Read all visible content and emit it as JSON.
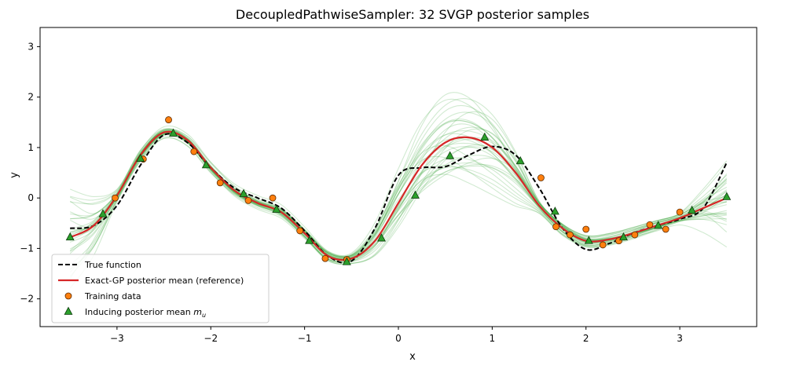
{
  "chart_data": {
    "type": "line",
    "title": "DecoupledPathwiseSampler: 32 SVGP posterior samples",
    "xlabel": "x",
    "ylabel": "y",
    "xlim": [
      -3.82,
      3.82
    ],
    "ylim": [
      -2.55,
      3.38
    ],
    "xticks": [
      -3,
      -2,
      -1,
      0,
      1,
      2,
      3
    ],
    "xtick_labels": [
      "−3",
      "−2",
      "−1",
      "0",
      "1",
      "2",
      "3"
    ],
    "yticks": [
      -2,
      -1,
      0,
      1,
      2,
      3
    ],
    "ytick_labels": [
      "−2",
      "−1",
      "0",
      "1",
      "2",
      "3"
    ],
    "grid": false,
    "legend_position": "lower-left",
    "sample_count": 32,
    "series": [
      {
        "name": "True function",
        "kind": "line",
        "style": "dashed",
        "color": "#000000",
        "x": [
          -3.5,
          -3.25,
          -3.0,
          -2.75,
          -2.5,
          -2.25,
          -2.0,
          -1.75,
          -1.5,
          -1.25,
          -1.0,
          -0.75,
          -0.5,
          -0.25,
          0.0,
          0.25,
          0.5,
          0.75,
          1.0,
          1.25,
          1.5,
          1.75,
          2.0,
          2.25,
          2.5,
          2.75,
          3.0,
          3.25,
          3.5
        ],
        "y": [
          -0.6,
          -0.55,
          -0.15,
          0.65,
          1.25,
          1.1,
          0.6,
          0.2,
          0.0,
          -0.2,
          -0.65,
          -1.15,
          -1.25,
          -0.6,
          0.45,
          0.6,
          0.62,
          0.85,
          1.02,
          0.85,
          0.2,
          -0.6,
          -1.02,
          -0.9,
          -0.7,
          -0.55,
          -0.42,
          -0.2,
          0.7
        ]
      },
      {
        "name": "Exact-GP posterior mean (reference)",
        "kind": "line",
        "style": "solid",
        "color": "#d62728",
        "x": [
          -3.5,
          -3.25,
          -3.0,
          -2.75,
          -2.5,
          -2.25,
          -2.0,
          -1.75,
          -1.5,
          -1.25,
          -1.0,
          -0.75,
          -0.5,
          -0.25,
          0.0,
          0.25,
          0.5,
          0.75,
          1.0,
          1.25,
          1.5,
          1.75,
          2.0,
          2.25,
          2.5,
          2.75,
          3.0,
          3.25,
          3.5
        ],
        "y": [
          -0.78,
          -0.55,
          0.05,
          0.85,
          1.3,
          1.15,
          0.6,
          0.15,
          -0.1,
          -0.28,
          -0.7,
          -1.15,
          -1.2,
          -0.85,
          -0.1,
          0.65,
          1.1,
          1.2,
          1.0,
          0.5,
          -0.15,
          -0.6,
          -0.85,
          -0.82,
          -0.7,
          -0.55,
          -0.4,
          -0.2,
          0.0
        ]
      },
      {
        "name": "Training data",
        "kind": "scatter",
        "marker": "circle",
        "color": "#ff7f0e",
        "x": [
          -3.02,
          -2.72,
          -2.45,
          -2.18,
          -1.9,
          -1.6,
          -1.34,
          -1.05,
          -0.78,
          -0.55,
          1.52,
          1.68,
          1.83,
          2.0,
          2.18,
          2.35,
          2.52,
          2.68,
          2.85,
          3.0
        ],
        "y": [
          0.0,
          0.77,
          1.55,
          0.92,
          0.3,
          -0.05,
          0.0,
          -0.65,
          -1.2,
          -1.22,
          0.4,
          -0.57,
          -0.73,
          -0.62,
          -0.93,
          -0.85,
          -0.73,
          -0.53,
          -0.62,
          -0.28
        ]
      },
      {
        "name": "Inducing posterior mean $m_u$",
        "kind": "scatter",
        "marker": "triangle",
        "color": "#2ca02c",
        "x": [
          -3.5,
          -3.15,
          -2.75,
          -2.4,
          -2.05,
          -1.65,
          -1.3,
          -0.95,
          -0.55,
          -0.18,
          0.18,
          0.55,
          0.92,
          1.3,
          1.67,
          2.03,
          2.4,
          2.77,
          3.13,
          3.5
        ],
        "y": [
          -0.78,
          -0.32,
          0.78,
          1.28,
          0.65,
          0.08,
          -0.23,
          -0.85,
          -1.27,
          -0.8,
          0.05,
          0.83,
          1.2,
          0.73,
          -0.27,
          -0.85,
          -0.78,
          -0.55,
          -0.25,
          0.02
        ]
      }
    ]
  }
}
